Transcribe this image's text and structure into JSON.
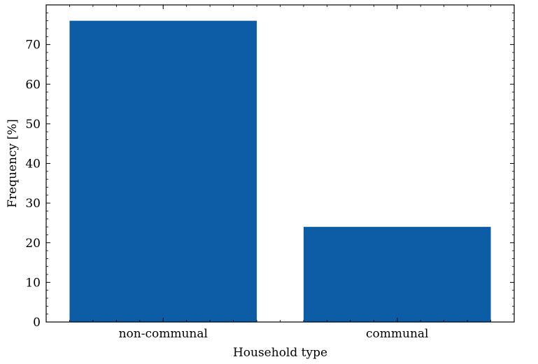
{
  "chart_data": {
    "type": "bar",
    "categories": [
      "non-communal",
      "communal"
    ],
    "values": [
      76,
      24
    ],
    "xlabel": "Household type",
    "ylabel": "Frequency [%]",
    "ylim": [
      0,
      80
    ],
    "yticks": [
      0,
      10,
      20,
      30,
      40,
      50,
      60,
      70
    ],
    "bar_color": "#0c5da5",
    "grid": false,
    "legend": false
  }
}
